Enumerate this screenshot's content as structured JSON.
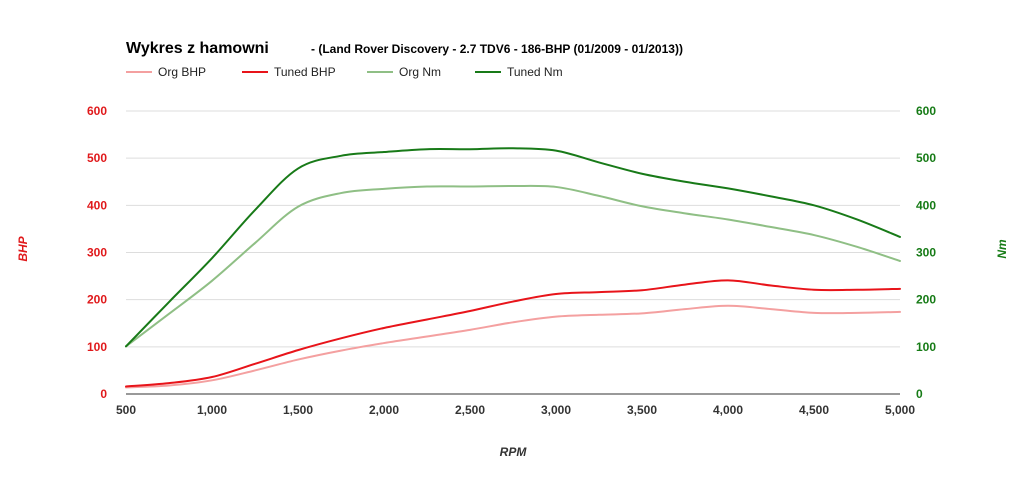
{
  "chart_data": {
    "type": "line",
    "title": "Wykres z hamowni",
    "subtitle": "- (Land Rover Discovery - 2.7 TDV6 - 186-BHP (01/2009 - 01/2013))",
    "xlabel": "RPM",
    "ylabel_left": "BHP",
    "ylabel_right": "Nm",
    "xlim": [
      500,
      5000
    ],
    "ylim_left": [
      0,
      600
    ],
    "ylim_right": [
      0,
      600
    ],
    "x_ticks": [
      "500",
      "1,000",
      "1,500",
      "2,000",
      "2,500",
      "3,000",
      "3,500",
      "4,000",
      "4,500",
      "5,000"
    ],
    "x_tick_values": [
      500,
      1000,
      1500,
      2000,
      2500,
      3000,
      3500,
      4000,
      4500,
      5000
    ],
    "y_ticks_left": [
      "0",
      "100",
      "200",
      "300",
      "400",
      "500",
      "600"
    ],
    "y_ticks_right": [
      "0",
      "100",
      "200",
      "300",
      "400",
      "500",
      "600"
    ],
    "y_tick_values": [
      0,
      100,
      200,
      300,
      400,
      500,
      600
    ],
    "grid": true,
    "legend_position": "top-left",
    "colors": {
      "left_axis": "#e0191b",
      "right_axis": "#167b16"
    },
    "x": [
      500,
      750,
      1000,
      1250,
      1500,
      1750,
      2000,
      2250,
      2500,
      2750,
      3000,
      3250,
      3500,
      3750,
      4000,
      4250,
      4500,
      4750,
      5000
    ],
    "series": [
      {
        "name": "Org BHP",
        "axis": "left",
        "color": "#f4a0a0",
        "values": [
          14,
          18,
          29,
          50,
          73,
          92,
          108,
          122,
          136,
          152,
          164,
          168,
          171,
          180,
          187,
          180,
          172,
          172,
          174
        ]
      },
      {
        "name": "Tuned BHP",
        "axis": "left",
        "color": "#e8141a",
        "values": [
          16,
          23,
          36,
          64,
          93,
          118,
          140,
          158,
          176,
          196,
          212,
          216,
          220,
          232,
          241,
          230,
          221,
          221,
          223
        ]
      },
      {
        "name": "Org Nm",
        "axis": "right",
        "color": "#8fbf85",
        "values": [
          101,
          170,
          240,
          320,
          397,
          426,
          435,
          440,
          440,
          441,
          439,
          420,
          398,
          383,
          370,
          354,
          337,
          312,
          282
        ]
      },
      {
        "name": "Tuned Nm",
        "axis": "right",
        "color": "#187a18",
        "values": [
          101,
          195,
          288,
          390,
          478,
          505,
          513,
          519,
          519,
          521,
          516,
          491,
          467,
          450,
          436,
          419,
          400,
          370,
          333
        ]
      }
    ]
  }
}
